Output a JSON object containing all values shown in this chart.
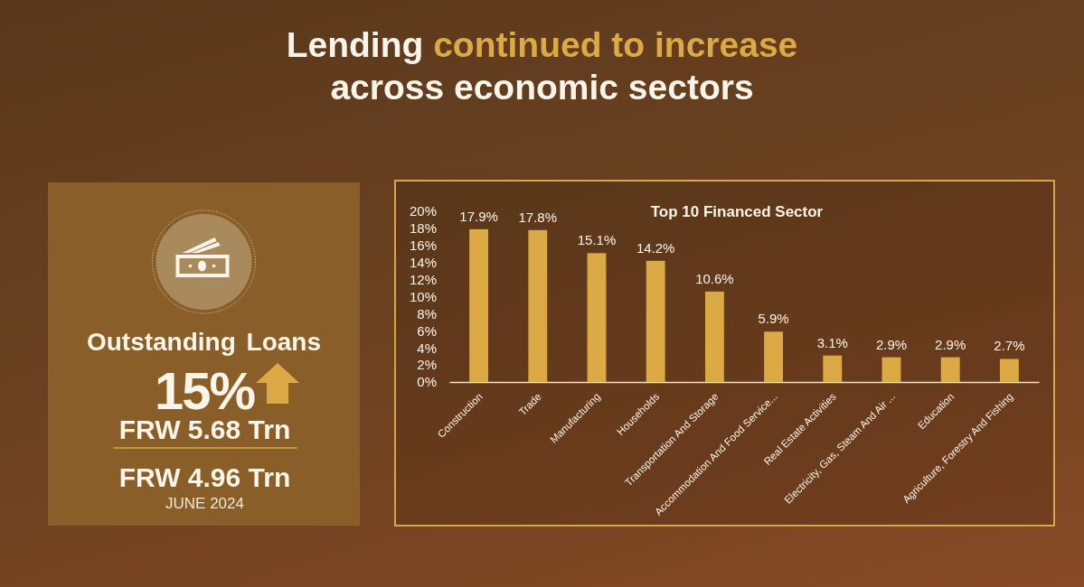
{
  "chart_data": [
    {
      "type": "other",
      "title": "Lending continued to increase across economic sectors"
    },
    {
      "type": "other",
      "title": "Outstanding Loans",
      "annotations": [
        "15%",
        "FRW 5.68 Trn",
        "FRW 4.96 Trn",
        "JUNE 2024"
      ]
    },
    {
      "type": "bar",
      "title": "Top 10 Financed Sector",
      "categories": [
        "Construction",
        "Trade",
        "Manufacturing",
        "Households",
        "Transportation And Storage",
        "Accommodation And Food Service...",
        "Real Estate Activities",
        "Electricity, Gas, Steam And Air ...",
        "Education",
        "Agriculture, Forestry And Fishing"
      ],
      "values": [
        17.9,
        17.8,
        15.1,
        14.2,
        10.6,
        5.9,
        3.1,
        2.9,
        2.9,
        2.7
      ],
      "value_labels": [
        "17.9%",
        "17.8%",
        "15.1%",
        "14.2%",
        "10.6%",
        "5.9%",
        "3.1%",
        "2.9%",
        "2.9%",
        "2.7%"
      ],
      "color": "#dcaa44",
      "ylim": [
        0,
        20
      ],
      "yticks": [
        {
          "value": 0,
          "label": "0%"
        },
        {
          "value": 2,
          "label": "2%"
        },
        {
          "value": 4,
          "label": "4%"
        },
        {
          "value": 6,
          "label": "6%"
        },
        {
          "value": 8,
          "label": "8%"
        },
        {
          "value": 10,
          "label": "10%"
        },
        {
          "value": 12,
          "label": "12%"
        },
        {
          "value": 14,
          "label": "14%"
        },
        {
          "value": 16,
          "label": "16%"
        },
        {
          "value": 18,
          "label": "18%"
        },
        {
          "value": 20,
          "label": "20%"
        }
      ]
    }
  ]
}
